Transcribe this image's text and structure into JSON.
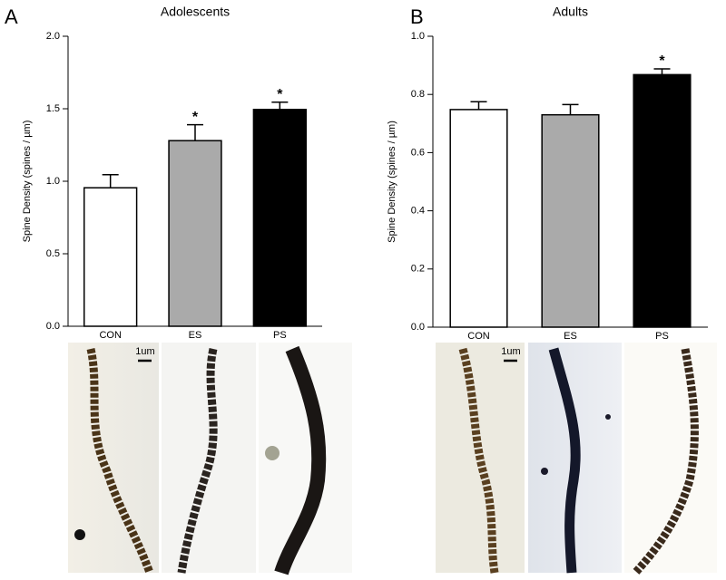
{
  "chart_data": [
    {
      "type": "bar",
      "panel_label": "A",
      "title": "Adolescents",
      "ylabel": "Spine Density (spines / µm)",
      "categories": [
        "CON",
        "ES",
        "PS"
      ],
      "values": [
        0.955,
        1.28,
        1.495
      ],
      "errors": [
        0.09,
        0.11,
        0.05
      ],
      "colors": [
        "#ffffff",
        "#aaaaaa",
        "#000000"
      ],
      "annotations": [
        null,
        "*",
        "*"
      ],
      "ylim": [
        0,
        2
      ],
      "yticks": [
        {
          "value": 0,
          "label": "0.0"
        },
        0.5,
        {
          "value": 1,
          "label": "1.0"
        },
        1.5,
        {
          "value": 2,
          "label": "2.0"
        }
      ],
      "scale_bar_label": "1um"
    },
    {
      "type": "bar",
      "panel_label": "B",
      "title": "Adults",
      "ylabel": "Spine Density (spines / µm)",
      "categories": [
        "CON",
        "ES",
        "PS"
      ],
      "values": [
        0.748,
        0.73,
        0.868
      ],
      "errors": [
        0.027,
        0.035,
        0.02
      ],
      "colors": [
        "#ffffff",
        "#aaaaaa",
        "#000000"
      ],
      "annotations": [
        null,
        null,
        "*"
      ],
      "ylim": [
        0,
        1
      ],
      "yticks": [
        {
          "value": 0,
          "label": "0.0"
        },
        0.2,
        0.4,
        0.6,
        0.8,
        {
          "value": 1,
          "label": "1.0"
        }
      ],
      "scale_bar_label": "1um"
    }
  ]
}
